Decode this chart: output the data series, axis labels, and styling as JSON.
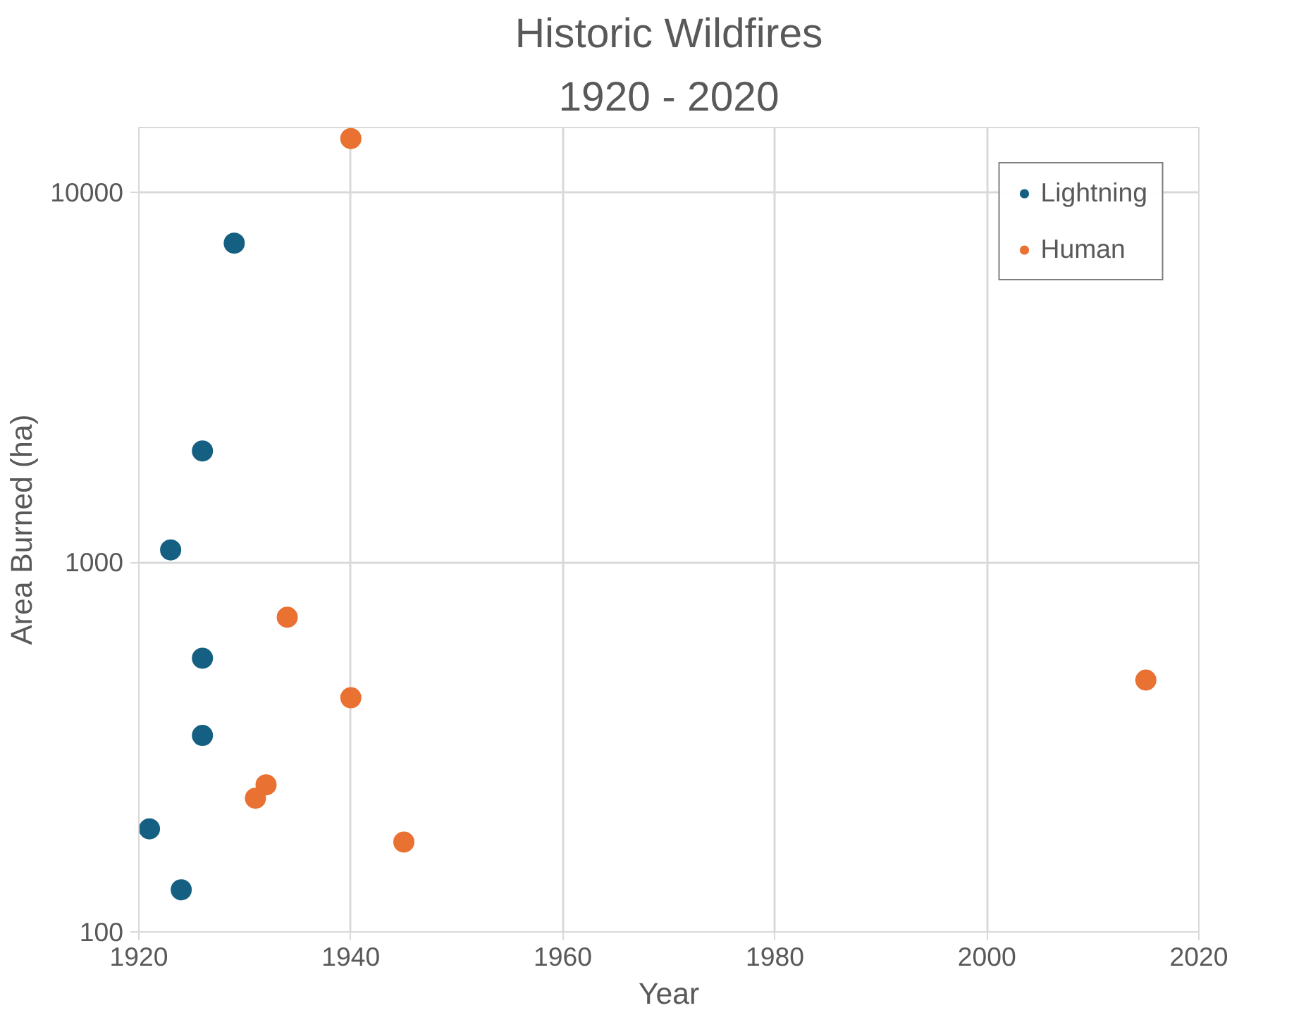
{
  "chart_data": {
    "type": "scatter",
    "title": "Historic Wildfires",
    "subtitle": "1920 - 2020",
    "xlabel": "Year",
    "ylabel": "Area Burned (ha)",
    "xlim": [
      1920,
      2020
    ],
    "xticks": [
      1920,
      1940,
      1960,
      1980,
      2000,
      2020
    ],
    "ylim": [
      100,
      15000
    ],
    "yticks": [
      100,
      1000,
      10000
    ],
    "log": "y",
    "grid": true,
    "legend": "top right",
    "marker": "circle",
    "series": [
      {
        "name": "Lightning",
        "color": "#156082",
        "x": [
          1921,
          1924,
          1926,
          1926,
          1923,
          1926,
          1929
        ],
        "values": [
          190,
          130,
          340,
          550,
          1080,
          2000,
          7300
        ]
      },
      {
        "name": "Human",
        "color": "#e97132",
        "x": [
          1940,
          1934,
          1940,
          1932,
          1931,
          1945,
          2015
        ],
        "values": [
          14000,
          710,
          430,
          250,
          230,
          175,
          480
        ]
      }
    ]
  }
}
